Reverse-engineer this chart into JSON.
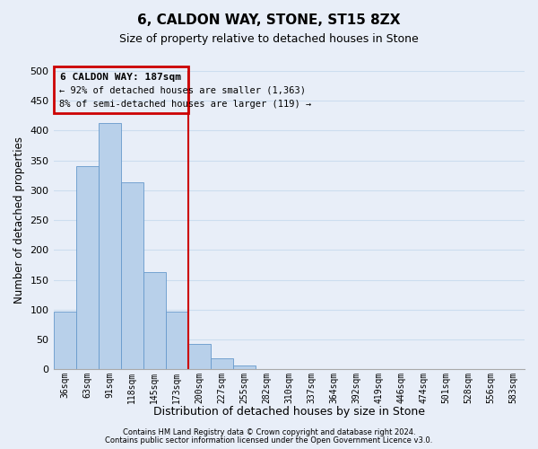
{
  "title": "6, CALDON WAY, STONE, ST15 8ZX",
  "subtitle": "Size of property relative to detached houses in Stone",
  "xlabel": "Distribution of detached houses by size in Stone",
  "ylabel": "Number of detached properties",
  "bar_labels": [
    "36sqm",
    "63sqm",
    "91sqm",
    "118sqm",
    "145sqm",
    "173sqm",
    "200sqm",
    "227sqm",
    "255sqm",
    "282sqm",
    "310sqm",
    "337sqm",
    "364sqm",
    "392sqm",
    "419sqm",
    "446sqm",
    "474sqm",
    "501sqm",
    "528sqm",
    "556sqm",
    "583sqm"
  ],
  "bar_values": [
    97,
    340,
    413,
    313,
    163,
    97,
    43,
    19,
    7,
    1,
    0,
    0,
    0,
    0,
    0,
    0,
    1,
    0,
    0,
    0,
    1
  ],
  "bar_color": "#b8d0ea",
  "bar_edge_color": "#6699cc",
  "grid_color": "#ccddef",
  "vline_x": 5.5,
  "vline_color": "#cc0000",
  "annotation_box_color": "#cc0000",
  "annotation_line1": "6 CALDON WAY: 187sqm",
  "annotation_line2": "← 92% of detached houses are smaller (1,363)",
  "annotation_line3": "8% of semi-detached houses are larger (119) →",
  "footnote1": "Contains HM Land Registry data © Crown copyright and database right 2024.",
  "footnote2": "Contains public sector information licensed under the Open Government Licence v3.0.",
  "ylim": [
    0,
    500
  ],
  "yticks": [
    0,
    50,
    100,
    150,
    200,
    250,
    300,
    350,
    400,
    450,
    500
  ],
  "background_color": "#e8eef8"
}
